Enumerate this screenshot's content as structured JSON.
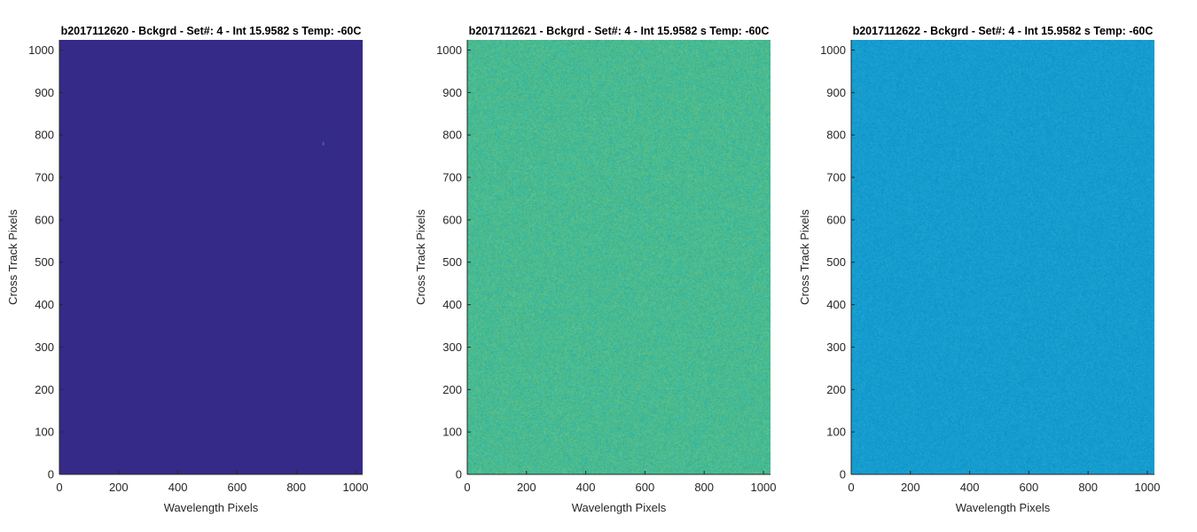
{
  "chart_data": [
    {
      "type": "heatmap",
      "title": "b2017112620 - Bckgrd - Set#: 4 - Int 15.9582 s Temp: -60C",
      "xlabel": "Wavelength Pixels",
      "ylabel": "Cross Track Pixels",
      "xlim": [
        0,
        1024
      ],
      "ylim": [
        0,
        1024
      ],
      "xticks": [
        0,
        200,
        400,
        600,
        800,
        1000
      ],
      "yticks": [
        0,
        100,
        200,
        300,
        400,
        500,
        600,
        700,
        800,
        900,
        1000
      ],
      "base_color": "#352a87",
      "noise_color": "#352a87",
      "noise_amount": 0.0,
      "hot_pixel": {
        "x": 888,
        "y": 775,
        "color": "#3a5fa8"
      }
    },
    {
      "type": "heatmap",
      "title": "b2017112621 - Bckgrd - Set#: 4 - Int 15.9582 s Temp: -60C",
      "xlabel": "Wavelength Pixels",
      "ylabel": "Cross Track Pixels",
      "xlim": [
        0,
        1024
      ],
      "ylim": [
        0,
        1024
      ],
      "xticks": [
        0,
        200,
        400,
        600,
        800,
        1000
      ],
      "yticks": [
        0,
        100,
        200,
        300,
        400,
        500,
        600,
        700,
        800,
        900,
        1000
      ],
      "base_color": "#2db6a6",
      "noise_color": "#7cc26c",
      "noise_amount": 0.35,
      "hot_pixel": null
    },
    {
      "type": "heatmap",
      "title": "b2017112622 - Bckgrd - Set#: 4 - Int 15.9582 s Temp: -60C",
      "xlabel": "Wavelength Pixels",
      "ylabel": "Cross Track Pixels",
      "xlim": [
        0,
        1024
      ],
      "ylim": [
        0,
        1024
      ],
      "xticks": [
        0,
        200,
        400,
        600,
        800,
        1000
      ],
      "yticks": [
        0,
        100,
        200,
        300,
        400,
        500,
        600,
        700,
        800,
        900,
        1000
      ],
      "base_color": "#1098d1",
      "noise_color": "#2aa8c8",
      "noise_amount": 0.25,
      "hot_pixel": null
    }
  ]
}
